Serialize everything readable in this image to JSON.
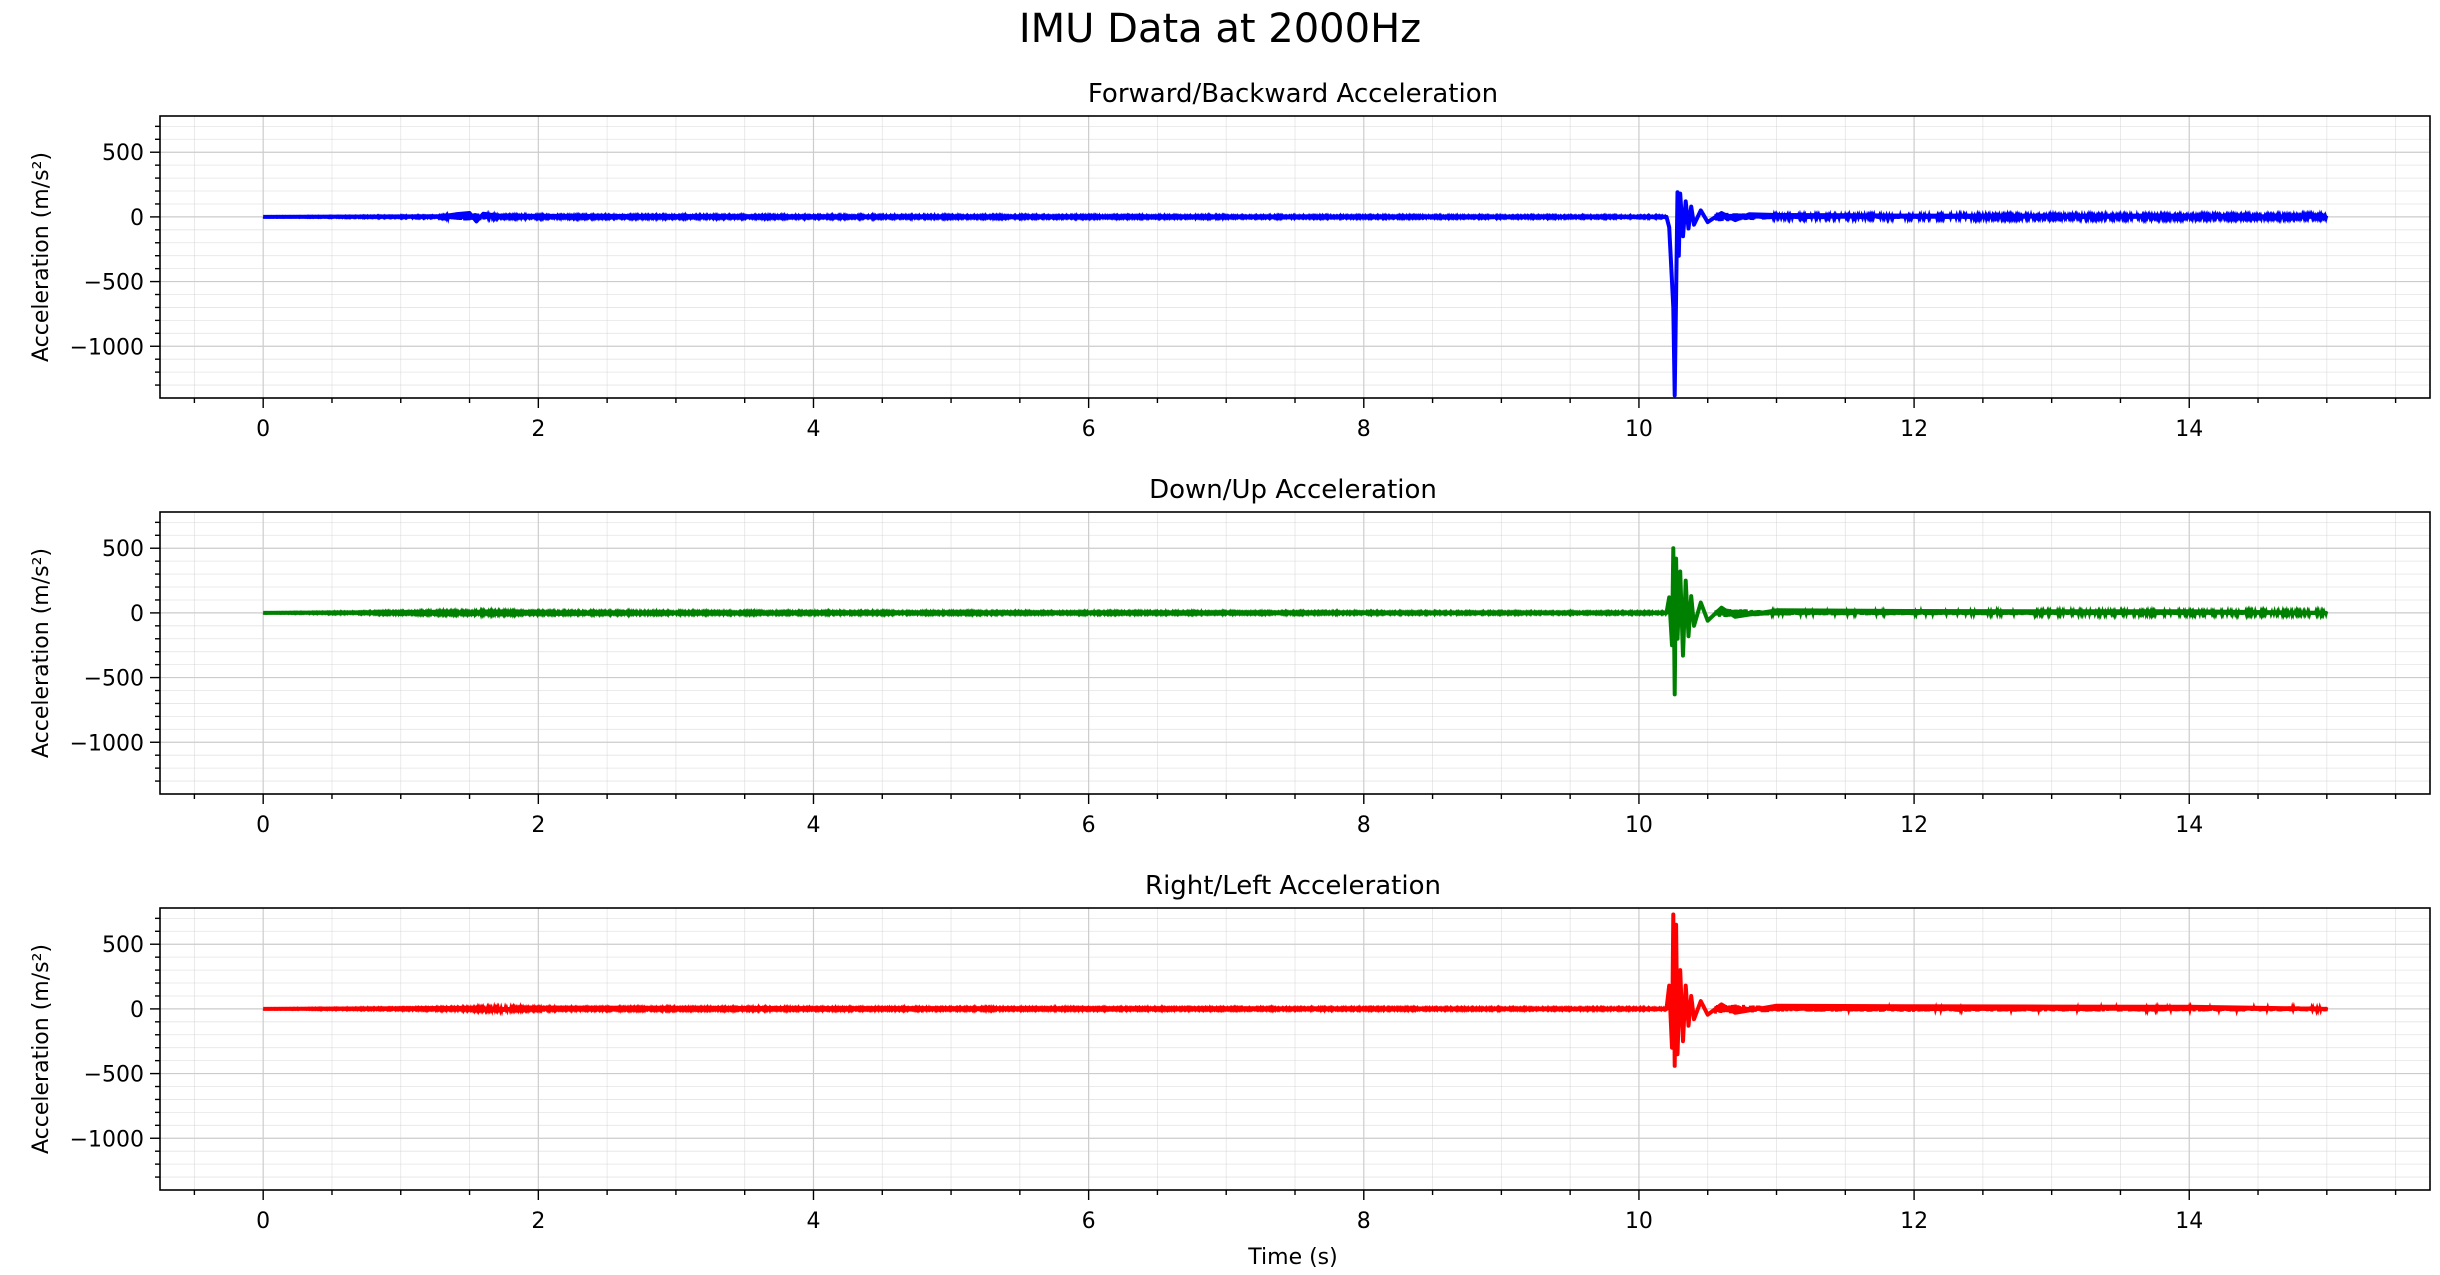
{
  "figure": {
    "title": "IMU Data at 2000Hz"
  },
  "colors": {
    "forward": "#0000ff",
    "down": "#008000",
    "right": "#ff0000",
    "grid": "#cccccc",
    "axes": "#000000"
  },
  "chart_data": [
    {
      "type": "line",
      "title": "Forward/Backward Acceleration",
      "xlabel": "",
      "ylabel": "Acceleration (m/s²)",
      "xlim": [
        -0.75,
        15.75
      ],
      "ylim": [
        -1400,
        780
      ],
      "xticks": [
        0,
        2,
        4,
        6,
        8,
        10,
        12,
        14
      ],
      "yticks": [
        -1000,
        -500,
        0,
        500
      ],
      "grid": true,
      "series": [
        {
          "color": "#0000ff",
          "x": [
            0,
            1.3,
            1.4,
            1.5,
            1.55,
            1.6,
            1.7,
            2.0,
            4.0,
            8.0,
            10.2,
            10.22,
            10.24,
            10.25,
            10.26,
            10.27,
            10.28,
            10.29,
            10.3,
            10.32,
            10.34,
            10.36,
            10.38,
            10.4,
            10.45,
            10.5,
            10.6,
            10.7,
            10.8,
            11.0,
            11.5,
            12.0,
            13.0,
            14.0,
            15.0
          ],
          "y": [
            0,
            5,
            20,
            30,
            -35,
            25,
            10,
            8,
            5,
            3,
            0,
            -80,
            -500,
            -700,
            -1380,
            -600,
            190,
            -300,
            180,
            -150,
            120,
            -90,
            80,
            -60,
            50,
            -40,
            30,
            -25,
            20,
            15,
            12,
            10,
            10,
            10,
            0
          ],
          "envelope": [
            [
              0,
              2
            ],
            [
              1.3,
              6
            ],
            [
              1.5,
              35
            ],
            [
              1.7,
              8
            ],
            [
              2.0,
              8
            ],
            [
              10.2,
              6
            ],
            [
              10.5,
              40
            ],
            [
              11.0,
              15
            ],
            [
              15.0,
              12
            ]
          ]
        }
      ]
    },
    {
      "type": "line",
      "title": "Down/Up Acceleration",
      "xlabel": "",
      "ylabel": "Acceleration (m/s²)",
      "xlim": [
        -0.75,
        15.75
      ],
      "ylim": [
        -1400,
        780
      ],
      "xticks": [
        0,
        2,
        4,
        6,
        8,
        10,
        12,
        14
      ],
      "yticks": [
        -1000,
        -500,
        0,
        500
      ],
      "grid": true,
      "series": [
        {
          "color": "#008000",
          "x": [
            0,
            1.4,
            1.5,
            1.6,
            2.0,
            2.1,
            4.0,
            8.0,
            10.2,
            10.22,
            10.24,
            10.25,
            10.26,
            10.27,
            10.28,
            10.3,
            10.32,
            10.34,
            10.36,
            10.38,
            10.4,
            10.45,
            10.5,
            10.6,
            10.7,
            11.0,
            12.0,
            13.0,
            14.0,
            15.0
          ],
          "y": [
            0,
            8,
            -12,
            10,
            8,
            -8,
            5,
            4,
            0,
            120,
            -250,
            500,
            -630,
            420,
            -200,
            320,
            -330,
            250,
            -180,
            130,
            -100,
            80,
            -60,
            40,
            -30,
            20,
            15,
            12,
            12,
            0
          ],
          "envelope": [
            [
              0,
              2
            ],
            [
              1.4,
              10
            ],
            [
              1.6,
              10
            ],
            [
              2.1,
              8
            ],
            [
              10.2,
              6
            ],
            [
              10.5,
              40
            ],
            [
              11.0,
              18
            ],
            [
              15.0,
              14
            ]
          ]
        }
      ]
    },
    {
      "type": "line",
      "title": "Right/Left Acceleration",
      "xlabel": "Time (s)",
      "ylabel": "Acceleration (m/s²)",
      "xlim": [
        -0.75,
        15.75
      ],
      "ylim": [
        -1400,
        780
      ],
      "xticks": [
        0,
        2,
        4,
        6,
        8,
        10,
        12,
        14
      ],
      "yticks": [
        -1000,
        -500,
        0,
        500
      ],
      "grid": true,
      "series": [
        {
          "color": "#ff0000",
          "x": [
            0,
            1.5,
            1.7,
            1.9,
            4.0,
            8.0,
            10.2,
            10.22,
            10.24,
            10.25,
            10.26,
            10.27,
            10.28,
            10.3,
            10.32,
            10.34,
            10.36,
            10.38,
            10.4,
            10.45,
            10.5,
            10.6,
            10.7,
            11.0,
            12.0,
            13.0,
            14.0,
            15.0
          ],
          "y": [
            0,
            8,
            -15,
            10,
            6,
            4,
            0,
            180,
            -300,
            730,
            -440,
            650,
            -350,
            300,
            -250,
            180,
            -130,
            100,
            -80,
            60,
            -45,
            35,
            -30,
            25,
            20,
            18,
            16,
            0
          ],
          "envelope": [
            [
              0,
              2
            ],
            [
              1.5,
              8
            ],
            [
              1.7,
              15
            ],
            [
              2.0,
              8
            ],
            [
              10.2,
              6
            ],
            [
              10.5,
              40
            ],
            [
              11.0,
              22
            ],
            [
              15.0,
              18
            ]
          ]
        }
      ]
    }
  ]
}
